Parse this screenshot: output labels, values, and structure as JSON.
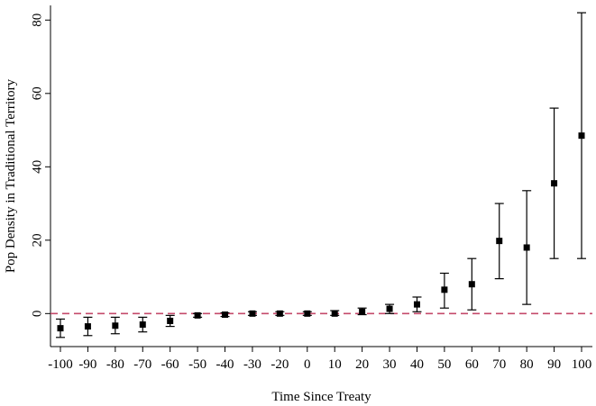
{
  "chart_data": {
    "type": "scatter",
    "title": "",
    "xlabel": "Time Since Treaty",
    "ylabel": "Pop Density in Traditional Territory",
    "xlim": [
      -100,
      100
    ],
    "ylim": [
      -9,
      84
    ],
    "x_ticks": [
      -100,
      -90,
      -80,
      -70,
      -60,
      -50,
      -40,
      -30,
      -20,
      0,
      10,
      20,
      30,
      40,
      50,
      60,
      70,
      80,
      90,
      100
    ],
    "y_ticks": [
      0,
      20,
      40,
      60,
      80
    ],
    "reference_line": {
      "y": 0,
      "style": "dashed",
      "color": "#c44a6b"
    },
    "grid": false,
    "series": [
      {
        "marker": "square",
        "color": "#000000",
        "points": [
          {
            "x": -100,
            "y": -4.0,
            "lo": -6.5,
            "hi": -1.5
          },
          {
            "x": -90,
            "y": -3.5,
            "lo": -6.0,
            "hi": -1.0
          },
          {
            "x": -80,
            "y": -3.3,
            "lo": -5.5,
            "hi": -1.0
          },
          {
            "x": -70,
            "y": -3.0,
            "lo": -5.0,
            "hi": -1.0
          },
          {
            "x": -60,
            "y": -2.0,
            "lo": -3.5,
            "hi": -0.5
          },
          {
            "x": -50,
            "y": -0.5,
            "lo": -1.0,
            "hi": 0.0
          },
          {
            "x": -40,
            "y": -0.3,
            "lo": -0.8,
            "hi": 0.2
          },
          {
            "x": -30,
            "y": 0.0,
            "lo": -0.5,
            "hi": 0.5
          },
          {
            "x": -20,
            "y": 0.0,
            "lo": -0.5,
            "hi": 0.5
          },
          {
            "x": -10,
            "y": 0.0,
            "lo": -0.5,
            "hi": 0.5
          },
          {
            "x": 10,
            "y": 0.0,
            "lo": -0.5,
            "hi": 0.8
          },
          {
            "x": 20,
            "y": 0.5,
            "lo": -0.3,
            "hi": 1.5
          },
          {
            "x": 30,
            "y": 1.3,
            "lo": 0.0,
            "hi": 2.5
          },
          {
            "x": 40,
            "y": 2.5,
            "lo": 0.5,
            "hi": 4.5
          },
          {
            "x": 50,
            "y": 6.5,
            "lo": 1.5,
            "hi": 11.0
          },
          {
            "x": 60,
            "y": 8.0,
            "lo": 1.0,
            "hi": 15.0
          },
          {
            "x": 70,
            "y": 19.8,
            "lo": 9.5,
            "hi": 30.0
          },
          {
            "x": 80,
            "y": 18.0,
            "lo": 2.5,
            "hi": 33.5
          },
          {
            "x": 90,
            "y": 35.5,
            "lo": 15.0,
            "hi": 56.0
          },
          {
            "x": 100,
            "y": 48.5,
            "lo": 15.0,
            "hi": 82.0
          }
        ]
      }
    ]
  }
}
